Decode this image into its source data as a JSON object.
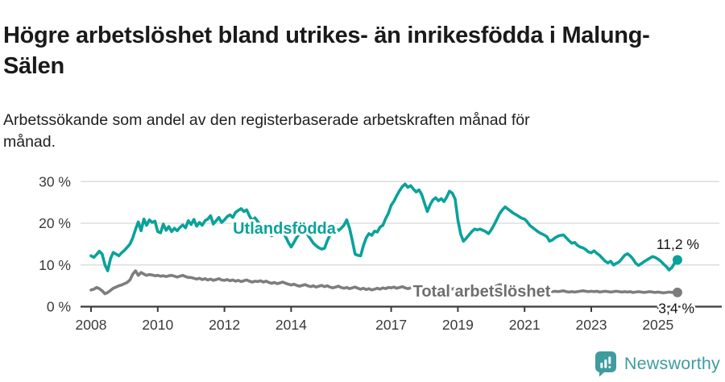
{
  "header": {
    "title": "Högre arbetslöshet bland utrikes- än inrikesfödda i Malung-Sälen",
    "subtitle": "Arbetssökande som andel av den registerbaserade arbetskraften månad för månad."
  },
  "footer": {
    "brand": "Newsworthy"
  },
  "colors": {
    "accent_teal": "#0aa29a",
    "line_gray": "#7d7d7d",
    "label_gray": "#6e6e6e",
    "axis": "#3a3a3a",
    "grid": "#dddddd",
    "text": "#141414",
    "brand_teal": "#3f9c9e"
  },
  "chart_data": {
    "type": "line",
    "title": "Högre arbetslöshet bland utrikes- än inrikesfödda i Malung-Sälen",
    "subtitle": "Arbetssökande som andel av den registerbaserade arbetskraften månad för månad.",
    "x_unit": "month",
    "x_range": [
      "2008-01",
      "2025-08"
    ],
    "x_tick_years": [
      2008,
      2010,
      2012,
      2014,
      2017,
      2019,
      2021,
      2023,
      2025
    ],
    "x_tick_labels": [
      "2008",
      "2010",
      "2012",
      "2014",
      "2017",
      "2019",
      "2021",
      "2023",
      "2025"
    ],
    "y_ticks": [
      {
        "value": 0,
        "label": "0 %"
      },
      {
        "value": 10,
        "label": "10 %"
      },
      {
        "value": 20,
        "label": "20 %"
      },
      {
        "value": 30,
        "label": "30 %"
      }
    ],
    "ylim": [
      0,
      33
    ],
    "grid": "horizontal",
    "legend": "inline-labels",
    "series": [
      {
        "name": "Utlandsfödda",
        "color": "#0aa29a",
        "end_label": "11,2 %",
        "end_value": 11.2,
        "values": [
          12.2,
          11.8,
          12.5,
          13.3,
          12.6,
          10.0,
          8.6,
          11.5,
          13.0,
          12.6,
          12.2,
          12.9,
          13.5,
          14.2,
          15.0,
          16.5,
          18.5,
          20.3,
          18.2,
          21.0,
          19.5,
          20.8,
          20.2,
          20.5,
          18.0,
          17.7,
          19.8,
          18.3,
          19.2,
          18.0,
          18.8,
          18.2,
          19.0,
          19.6,
          18.9,
          20.6,
          19.7,
          20.9,
          19.3,
          20.2,
          19.5,
          20.6,
          21.0,
          21.8,
          19.8,
          20.6,
          21.4,
          20.2,
          20.8,
          21.6,
          22.0,
          21.4,
          22.6,
          23.1,
          23.5,
          22.8,
          23.2,
          21.8,
          20.6,
          21.3,
          20.4,
          19.6,
          18.8,
          17.9,
          17.4,
          17.0,
          17.8,
          18.6,
          19.2,
          18.0,
          16.8,
          15.4,
          14.3,
          15.4,
          16.6,
          17.5,
          18.3,
          18.0,
          17.2,
          16.2,
          15.2,
          14.6,
          14.1,
          13.8,
          14.0,
          15.8,
          17.2,
          18.4,
          18.8,
          18.2,
          18.8,
          19.5,
          20.8,
          18.8,
          15.9,
          12.6,
          12.3,
          12.2,
          14.6,
          16.5,
          17.5,
          17.1,
          18.1,
          17.9,
          19.1,
          19.5,
          21.1,
          22.4,
          24.3,
          25.3,
          26.6,
          27.8,
          28.8,
          29.4,
          28.6,
          29.0,
          28.2,
          27.5,
          28.0,
          26.9,
          24.8,
          22.8,
          24.4,
          25.6,
          26.1,
          25.4,
          25.9,
          25.2,
          26.3,
          27.7,
          27.2,
          25.8,
          20.8,
          17.4,
          15.7,
          16.4,
          17.2,
          18.0,
          18.6,
          18.4,
          18.6,
          18.3,
          18.0,
          17.5,
          18.4,
          19.6,
          20.9,
          22.3,
          23.2,
          23.9,
          23.4,
          22.9,
          22.4,
          22.0,
          21.6,
          21.2,
          21.0,
          20.3,
          19.4,
          18.9,
          18.4,
          17.9,
          17.5,
          17.2,
          16.8,
          15.7,
          16.0,
          16.5,
          16.9,
          17.1,
          17.2,
          16.5,
          15.8,
          15.2,
          15.4,
          14.7,
          14.3,
          14.1,
          13.7,
          13.1,
          12.9,
          13.4,
          12.8,
          12.3,
          11.6,
          10.9,
          10.5,
          10.9,
          10.0,
          10.4,
          10.7,
          11.5,
          12.3,
          12.7,
          12.2,
          11.4,
          10.4,
          9.9,
          10.3,
          10.8,
          11.2,
          11.6,
          12.0,
          11.8,
          11.4,
          10.9,
          10.2,
          9.6,
          8.8,
          9.4,
          10.5,
          11.2
        ]
      },
      {
        "name": "Total arbetslöshet",
        "color": "#7d7d7d",
        "label_color": "#6e6e6e",
        "end_label": "3,4 %",
        "end_value": 3.4,
        "values": [
          4.0,
          4.2,
          4.6,
          4.3,
          3.8,
          3.1,
          3.4,
          3.9,
          4.4,
          4.7,
          5.0,
          5.2,
          5.5,
          5.8,
          6.4,
          7.8,
          8.6,
          7.5,
          8.2,
          7.8,
          7.5,
          7.7,
          7.6,
          7.4,
          7.5,
          7.3,
          7.4,
          7.2,
          7.4,
          7.5,
          7.3,
          7.1,
          7.3,
          7.5,
          7.2,
          7.0,
          7.0,
          6.8,
          6.6,
          6.8,
          6.5,
          6.7,
          6.4,
          6.6,
          6.3,
          6.5,
          6.7,
          6.4,
          6.3,
          6.5,
          6.2,
          6.4,
          6.1,
          6.3,
          6.0,
          6.2,
          6.4,
          6.1,
          5.9,
          6.1,
          6.0,
          6.2,
          5.9,
          6.1,
          5.8,
          5.6,
          5.8,
          5.5,
          5.7,
          5.9,
          5.6,
          5.4,
          5.2,
          5.4,
          5.1,
          4.9,
          5.1,
          5.3,
          5.0,
          4.8,
          5.0,
          4.7,
          4.9,
          5.1,
          4.8,
          5.0,
          4.7,
          4.5,
          4.7,
          4.9,
          4.6,
          4.4,
          4.6,
          4.3,
          4.5,
          4.7,
          4.4,
          4.2,
          4.4,
          4.1,
          4.3,
          4.0,
          4.2,
          4.4,
          4.2,
          4.5,
          4.3,
          4.6,
          4.5,
          4.7,
          4.4,
          4.6,
          4.8,
          4.5,
          4.3,
          4.5,
          4.7,
          4.4,
          4.6,
          4.4,
          4.5,
          4.3,
          4.5,
          4.2,
          4.4,
          4.6,
          4.3,
          4.1,
          4.3,
          4.5,
          4.2,
          4.4,
          4.3,
          4.1,
          4.3,
          4.5,
          4.2,
          4.4,
          4.1,
          4.3,
          4.5,
          4.2,
          4.4,
          4.6,
          4.5,
          4.7,
          5.0,
          5.3,
          5.2,
          5.0,
          4.9,
          4.8,
          4.6,
          4.5,
          4.4,
          4.3,
          4.2,
          4.1,
          4.0,
          3.9,
          3.8,
          3.9,
          3.8,
          3.7,
          3.8,
          3.7,
          3.6,
          3.7,
          3.6,
          3.7,
          3.8,
          3.6,
          3.5,
          3.6,
          3.5,
          3.6,
          3.7,
          3.8,
          3.7,
          3.6,
          3.7,
          3.6,
          3.7,
          3.5,
          3.6,
          3.7,
          3.6,
          3.5,
          3.6,
          3.7,
          3.6,
          3.5,
          3.6,
          3.5,
          3.6,
          3.4,
          3.5,
          3.6,
          3.5,
          3.4,
          3.5,
          3.6,
          3.5,
          3.4,
          3.5,
          3.4,
          3.3,
          3.4,
          3.5,
          3.4,
          3.5,
          3.4
        ]
      }
    ]
  }
}
